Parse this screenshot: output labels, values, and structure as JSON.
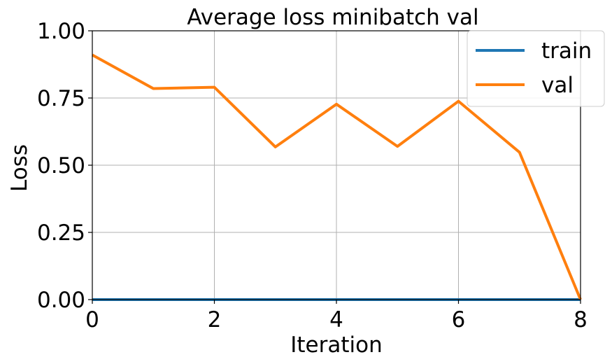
{
  "chart_data": {
    "type": "line",
    "title": "Average loss minibatch val",
    "xlabel": "Iteration",
    "ylabel": "Loss",
    "xlim": [
      0,
      8
    ],
    "ylim": [
      0,
      1
    ],
    "xticks": [
      0,
      2,
      4,
      6,
      8
    ],
    "xtick_labels": [
      "0",
      "2",
      "4",
      "6",
      "8"
    ],
    "yticks": [
      0,
      0.25,
      0.5,
      0.75,
      1.0
    ],
    "ytick_labels": [
      "0.00",
      "0.25",
      "0.50",
      "0.75",
      "1.00"
    ],
    "grid": true,
    "legend_position": "top-right",
    "x": [
      0,
      1,
      2,
      3,
      4,
      5,
      6,
      7,
      8
    ],
    "series": [
      {
        "name": "train",
        "color": "#1f77b4",
        "values": [
          0,
          0,
          0,
          0,
          0,
          0,
          0,
          0,
          0
        ]
      },
      {
        "name": "val",
        "color": "#ff7f0e",
        "values": [
          0.91,
          0.785,
          0.79,
          0.568,
          0.727,
          0.57,
          0.738,
          0.548,
          0.0
        ]
      }
    ]
  }
}
